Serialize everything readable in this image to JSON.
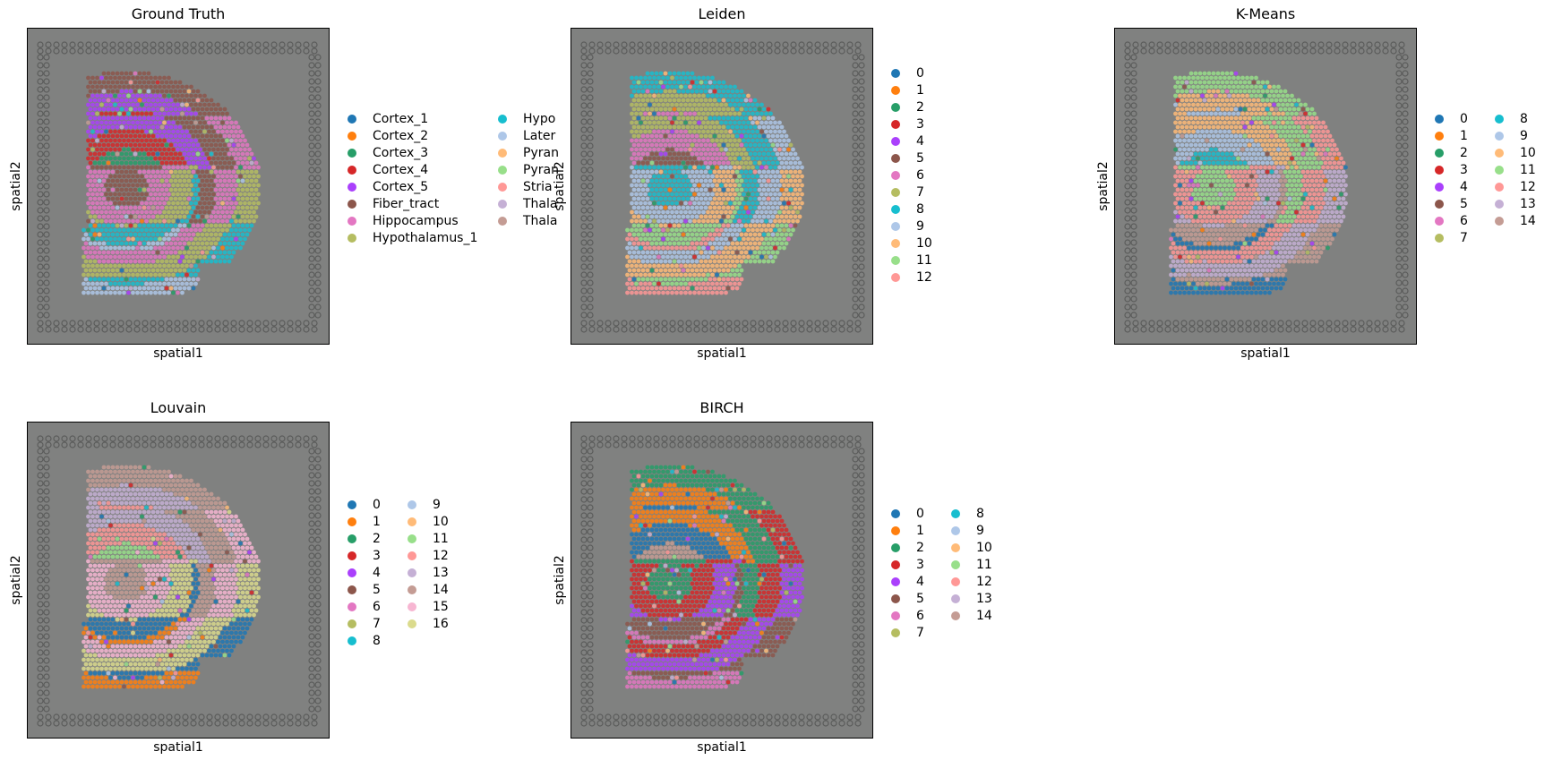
{
  "figure": {
    "background": "#ffffff",
    "section_color": "#808180",
    "grid": false
  },
  "palette": [
    "#1f77b4",
    "#ff7f0e",
    "#279e68",
    "#d62728",
    "#aa40fc",
    "#8c564b",
    "#e377c2",
    "#b5bd61",
    "#17becf",
    "#aec7e8",
    "#ffbb78",
    "#98df8a",
    "#ff9896",
    "#c5b0d5",
    "#c49c94",
    "#f7b6d2",
    "#dbdb8d"
  ],
  "chart_data": [
    {
      "type": "scatter",
      "title": "Ground Truth",
      "xlabel": "spatial1",
      "ylabel": "spatial2",
      "legend_columns": 2,
      "legend_placement": "right",
      "categories": [
        "Cortex_1",
        "Cortex_2",
        "Cortex_3",
        "Cortex_4",
        "Cortex_5",
        "Fiber_tract",
        "Hippocampus",
        "Hypothalamus_1",
        "Hypo",
        "Later",
        "Pyran",
        "Pyran",
        "Stria",
        "Thala",
        "Thala"
      ]
    },
    {
      "type": "scatter",
      "title": "Leiden",
      "xlabel": "spatial1",
      "ylabel": "spatial2",
      "legend_columns": 1,
      "legend_placement": "right",
      "categories": [
        "0",
        "1",
        "2",
        "3",
        "4",
        "5",
        "6",
        "7",
        "8",
        "9",
        "10",
        "11",
        "12"
      ]
    },
    {
      "type": "scatter",
      "title": "K-Means",
      "xlabel": "spatial1",
      "ylabel": "spatial2",
      "legend_columns": 2,
      "legend_placement": "right",
      "categories": [
        "0",
        "1",
        "2",
        "3",
        "4",
        "5",
        "6",
        "7",
        "8",
        "9",
        "10",
        "11",
        "12",
        "13",
        "14"
      ]
    },
    {
      "type": "scatter",
      "title": "Louvain",
      "xlabel": "spatial1",
      "ylabel": "spatial2",
      "legend_columns": 2,
      "legend_placement": "right",
      "categories": [
        "0",
        "1",
        "2",
        "3",
        "4",
        "5",
        "6",
        "7",
        "8",
        "9",
        "10",
        "11",
        "12",
        "13",
        "14",
        "15",
        "16"
      ]
    },
    {
      "type": "scatter",
      "title": "BIRCH",
      "xlabel": "spatial1",
      "ylabel": "spatial2",
      "legend_columns": 2,
      "legend_placement": "right",
      "categories": [
        "0",
        "1",
        "2",
        "3",
        "4",
        "5",
        "6",
        "7",
        "8",
        "9",
        "10",
        "11",
        "12",
        "13",
        "14"
      ]
    }
  ]
}
